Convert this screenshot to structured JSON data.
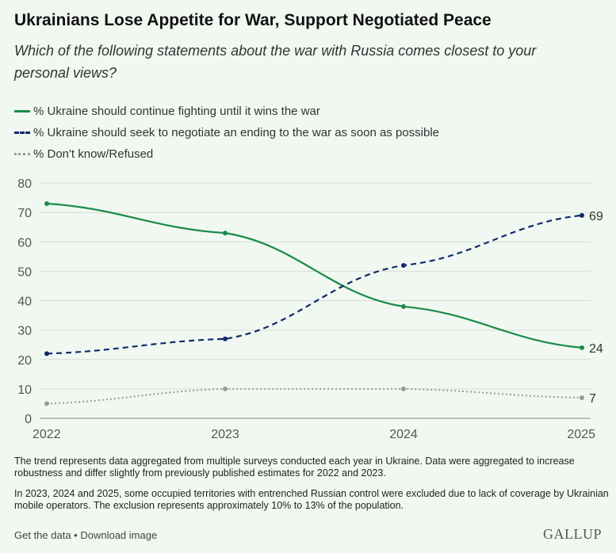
{
  "title": "Ukrainians Lose Appetite for War, Support Negotiated Peace",
  "subtitle": "Which of the following statements about the war with Russia comes closest to your personal views?",
  "colors": {
    "fight": "#1a8a4a",
    "negotiate": "#102a6b",
    "dontknow": "#9a9a9a"
  },
  "chart_data": {
    "type": "line",
    "x": [
      "2022",
      "2023",
      "2024",
      "2025"
    ],
    "ylim": [
      0,
      80
    ],
    "yticks": [
      "0",
      "10",
      "20",
      "30",
      "40",
      "50",
      "60",
      "70",
      "80"
    ],
    "grid": true,
    "legend_placement": "top-left",
    "series": [
      {
        "name": "% Ukraine should continue fighting until it wins the war",
        "values": [
          73,
          63,
          38,
          24
        ],
        "end_label": "24"
      },
      {
        "name": "% Ukraine should seek to negotiate an ending to the war as soon as possible",
        "values": [
          22,
          27,
          52,
          69
        ],
        "end_label": "69"
      },
      {
        "name": "% Don't know/Refused",
        "values": [
          5,
          10,
          10,
          7
        ],
        "end_label": "7"
      }
    ]
  },
  "notes": [
    "The trend represents data aggregated from multiple surveys conducted each year in Ukraine. Data were aggregated to increase robustness and differ slightly from previously published estimates for 2022 and 2023.",
    "In 2023, 2024 and 2025, some occupied territories with entrenched Russian control were excluded due to lack of coverage by Ukrainian mobile operators. The exclusion represents approximately 10% to 13% of the population."
  ],
  "footer": {
    "get_data": "Get the data",
    "sep": " • ",
    "download": "Download image",
    "logo": "GALLUP"
  }
}
